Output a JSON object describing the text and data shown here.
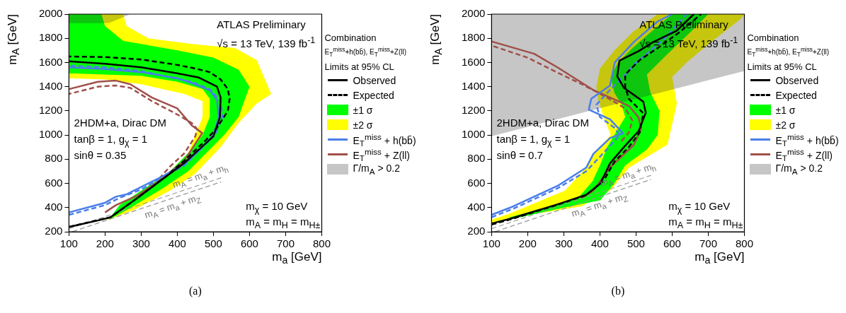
{
  "chart_data": [
    {
      "type": "line",
      "xlabel": "m$_{a}$ [GeV]",
      "ylabel": "m$_{A}$ [GeV]",
      "xlim": [
        100,
        800
      ],
      "ylim": [
        200,
        2000
      ],
      "xticks": [
        100,
        200,
        300,
        400,
        500,
        600,
        700,
        800
      ],
      "yticks": [
        200,
        400,
        600,
        800,
        1000,
        1200,
        1400,
        1600,
        1800,
        2000
      ],
      "grid": false,
      "legend": "right",
      "legend_title": "Combination\nE$_{T}$$^{miss}$+h(bb̄), E$_{T}$$^{miss}$+Z(ll)\nLimits at 95% CL",
      "annotations": [
        "ATLAS Preliminary",
        "√s = 13 TeV, 139 fb$^{-1}$",
        "2HDM+a, Dirac DM",
        "tanβ = 1, g$_{χ}$ = 1",
        "sinθ = 0.35",
        "m$_{χ}$ = 10 GeV",
        "m$_{A}$ = m$_{H}$ = m$_{H±}$",
        "(a)",
        {
          "text": "m$_{A}$ = m$_{a}$ + m$_{h}$",
          "x": 470,
          "y": 595
        },
        {
          "text": "m$_{A}$ = m$_{a}$ + m$_{Z}$",
          "x": 380,
          "y": 471
        }
      ],
      "series": [
        {
          "name": "Observed",
          "type": "line",
          "color": "#000000",
          "line_style": "solid",
          "x": [
            100,
            190,
            215,
            290,
            366,
            420,
            460,
            500,
            518,
            520,
            510,
            460,
            400,
            300,
            200,
            100
          ],
          "values": [
            240,
            300,
            320,
            480,
            650,
            770,
            880,
            990,
            1145,
            1310,
            1400,
            1475,
            1510,
            1560,
            1590,
            1610
          ]
        },
        {
          "name": "Expected",
          "type": "line",
          "color": "#000000",
          "line_style": "dashed",
          "x": [
            100,
            215,
            290,
            370,
            420,
            480,
            510,
            540,
            545,
            540,
            520,
            490,
            450,
            400,
            300,
            200,
            100
          ],
          "values": [
            240,
            320,
            480,
            660,
            790,
            960,
            1060,
            1200,
            1300,
            1380,
            1460,
            1520,
            1550,
            1580,
            1625,
            1645,
            1650
          ]
        },
        {
          "name": "±1 σ",
          "type": "area",
          "color": "#00ff00",
          "x": [
            210,
            260,
            360,
            430,
            480,
            530,
            570,
            583,
            600,
            570,
            500,
            400,
            250,
            200,
            190,
            100,
            100,
            200,
            300,
            400,
            470,
            490,
            490,
            470,
            440,
            380,
            300,
            240
          ],
          "values": [
            300,
            380,
            560,
            700,
            850,
            1000,
            1150,
            1260,
            1400,
            1540,
            1640,
            1700,
            1780,
            1900,
            2000,
            2000,
            1510,
            1500,
            1490,
            1440,
            1380,
            1300,
            1150,
            1000,
            880,
            700,
            540,
            420
          ]
        },
        {
          "name": "±2 σ",
          "type": "area",
          "color": "#ffff00",
          "x": [
            200,
            280,
            380,
            450,
            520,
            570,
            620,
            660,
            620,
            560,
            450,
            320,
            260,
            250,
            100,
            100,
            200,
            300,
            420,
            470,
            470,
            450,
            430,
            380,
            300,
            220
          ],
          "values": [
            290,
            380,
            540,
            680,
            900,
            1100,
            1260,
            1340,
            1620,
            1720,
            1750,
            1800,
            1900,
            2000,
            2000,
            1470,
            1460,
            1420,
            1340,
            1280,
            1150,
            1000,
            850,
            700,
            520,
            340
          ]
        },
        {
          "name": "E$_{T}$$^{miss}$ + h(bb̄)",
          "type": "line",
          "color": "#4a7ee8",
          "line_style": "solid",
          "x": [
            100,
            200,
            230,
            260,
            300,
            360,
            420,
            460,
            500,
            515,
            510,
            490,
            450,
            400,
            300,
            200,
            100
          ],
          "values": [
            360,
            440,
            490,
            510,
            570,
            660,
            760,
            870,
            1000,
            1150,
            1290,
            1370,
            1420,
            1470,
            1520,
            1545,
            1560
          ]
        },
        {
          "name": "E$_{T}$$^{miss}$ + Z(ll)",
          "type": "line",
          "color": "#a0504a",
          "line_style": "solid",
          "x": [
            200,
            230,
            290,
            350,
            420,
            469,
            440,
            400,
            330,
            270,
            230,
            180,
            100
          ],
          "values": [
            360,
            420,
            500,
            620,
            790,
            1016,
            1080,
            1220,
            1310,
            1420,
            1450,
            1440,
            1380
          ]
        },
        {
          "name": "Γ/m$_{A}$ > 0.2",
          "type": "area",
          "line_style": "dotted",
          "color": "#333333",
          "x": [
            100,
            210,
            270,
            100
          ],
          "values": [
            1925,
            1925,
            2000,
            2000
          ]
        },
        {
          "type": "line",
          "color": "#4a7ee8",
          "line_style": "dashed",
          "x": [
            100,
            200,
            240,
            300,
            360,
            420,
            470,
            505,
            525,
            520,
            490,
            440,
            300,
            200,
            100
          ],
          "values": [
            340,
            420,
            480,
            550,
            650,
            750,
            900,
            1000,
            1150,
            1280,
            1380,
            1440,
            1530,
            1560,
            1575
          ]
        },
        {
          "type": "line",
          "color": "#a0504a",
          "line_style": "dashed",
          "x": [
            350,
            380,
            420,
            450,
            455,
            440,
            400,
            330,
            270,
            230,
            180,
            100
          ],
          "values": [
            640,
            740,
            850,
            990,
            1050,
            1100,
            1170,
            1280,
            1390,
            1410,
            1400,
            1340
          ]
        },
        {
          "type": "line",
          "color": "#999999",
          "line_style": "dashed",
          "x": [
            100,
            520
          ],
          "values": [
            225,
            645
          ]
        },
        {
          "type": "line",
          "color": "#999999",
          "line_style": "dashed",
          "x": [
            110,
            520
          ],
          "values": [
            201,
            611
          ]
        }
      ]
    },
    {
      "type": "line",
      "xlabel": "m$_{a}$ [GeV]",
      "ylabel": "m$_{A}$ [GeV]",
      "xlim": [
        100,
        800
      ],
      "ylim": [
        200,
        2000
      ],
      "xticks": [
        100,
        200,
        300,
        400,
        500,
        600,
        700,
        800
      ],
      "yticks": [
        200,
        400,
        600,
        800,
        1000,
        1200,
        1400,
        1600,
        1800,
        2000
      ],
      "grid": false,
      "legend": "right",
      "legend_title": "Combination\nE$_{T}$$^{miss}$+h(bb̄), E$_{T}$$^{miss}$+Z(ll)\nLimits at 95% CL",
      "annotations": [
        "ATLAS Preliminary",
        "√s = 13 TeV, 139 fb$^{-1}$",
        "2HDM+a, Dirac DM",
        "tanβ = 1, g$_{χ}$ = 1",
        "sinθ = 0.7",
        "m$_{χ}$ = 10 GeV",
        "m$_{A}$ = m$_{H}$ = m$_{H±}$",
        "(b)",
        {
          "text": "m$_{A}$ = m$_{a}$ + m$_{h}$",
          "x": 484,
          "y": 609
        },
        {
          "text": "m$_{A}$ = m$_{a}$ + m$_{Z}$",
          "x": 392,
          "y": 483
        }
      ],
      "series": [
        {
          "name": "Observed",
          "type": "line",
          "color": "#000000",
          "line_style": "solid",
          "x": [
            100,
            152,
            283,
            362,
            401,
            428,
            467,
            507,
            527,
            520,
            467,
            448,
            454,
            507,
            547,
            613,
            660
          ],
          "values": [
            268,
            308,
            427,
            506,
            597,
            766,
            902,
            1032,
            1185,
            1276,
            1389,
            1485,
            1615,
            1694,
            1768,
            1864,
            2000
          ]
        },
        {
          "name": "Expected",
          "type": "line",
          "color": "#000000",
          "line_style": "dashed",
          "x": [
            100,
            150,
            280,
            360,
            410,
            440,
            480,
            510,
            520,
            480,
            470,
            470,
            510,
            560,
            620,
            680
          ],
          "values": [
            260,
            300,
            420,
            500,
            620,
            780,
            900,
            1020,
            1180,
            1300,
            1400,
            1500,
            1620,
            1720,
            1850,
            2000
          ]
        },
        {
          "name": "±1 σ",
          "type": "area",
          "color": "#00ff00",
          "x": [
            150,
            300,
            401,
            440,
            470,
            530,
            560,
            565,
            540,
            530,
            580,
            650,
            700,
            600,
            540,
            490,
            450,
            430,
            440,
            460,
            470,
            450,
            420,
            400,
            380,
            340,
            250,
            150
          ],
          "values": [
            300,
            400,
            460,
            600,
            750,
            880,
            1000,
            1200,
            1350,
            1500,
            1650,
            1850,
            2000,
            2000,
            1850,
            1720,
            1600,
            1480,
            1350,
            1250,
            1150,
            1050,
            900,
            750,
            620,
            480,
            400,
            320
          ]
        },
        {
          "name": "±2 σ",
          "type": "area",
          "color": "#ffff00",
          "x": [
            100,
            185,
            349,
            428,
            481,
            587,
            613,
            600,
            640,
            700,
            790,
            800,
            560,
            490,
            440,
            400,
            390,
            395,
            410,
            430,
            390,
            362,
            303,
            150,
            100
          ],
          "values": [
            260,
            330,
            410,
            540,
            730,
            920,
            1260,
            1480,
            1600,
            1750,
            1960,
            2000,
            2000,
            1850,
            1700,
            1550,
            1400,
            1300,
            1150,
            1000,
            870,
            730,
            540,
            350,
            300
          ]
        },
        {
          "name": "E$_{T}$$^{miss}$ + h(bb̄)",
          "type": "line",
          "color": "#4a7ee8",
          "line_style": "solid",
          "x": [
            100,
            152,
            283,
            362,
            382,
            428,
            464,
            428,
            369,
            376,
            428,
            441,
            494,
            560,
            600
          ],
          "values": [
            340,
            400,
            580,
            730,
            845,
            975,
            1015,
            1130,
            1210,
            1300,
            1410,
            1600,
            1770,
            1940,
            2000
          ]
        },
        {
          "name": "E$_{T}$$^{miss}$ + Z(ll)",
          "type": "line",
          "color": "#a0504a",
          "line_style": "solid",
          "x": [
            349,
            382,
            428,
            494,
            514,
            507,
            481,
            382,
            283,
            218,
            100
          ],
          "values": [
            480,
            540,
            732,
            919,
            1050,
            1146,
            1240,
            1372,
            1559,
            1672,
            1774
          ]
        },
        {
          "name": "Γ/m$_{A}$ > 0.2",
          "type": "area",
          "line_style": "dotted",
          "color": "#333333",
          "x": [
            100,
            800,
            800,
            100
          ],
          "values": [
            990,
            1530,
            2000,
            2000
          ]
        },
        {
          "type": "line",
          "color": "#4a7ee8",
          "line_style": "dashed",
          "x": [
            100,
            160,
            283,
            362,
            400,
            440,
            455,
            440,
            400,
            390,
            430,
            470,
            500,
            540,
            580,
            640
          ],
          "values": [
            320,
            390,
            560,
            700,
            820,
            950,
            1000,
            1060,
            1150,
            1250,
            1380,
            1500,
            1600,
            1700,
            1800,
            2000
          ]
        },
        {
          "type": "line",
          "color": "#a0504a",
          "line_style": "dashed",
          "x": [
            460,
            480,
            490,
            470,
            420,
            350,
            280,
            200,
            100
          ],
          "values": [
            950,
            1020,
            1120,
            1220,
            1310,
            1420,
            1520,
            1640,
            1740
          ]
        },
        {
          "type": "line",
          "color": "#999999",
          "line_style": "dashed",
          "x": [
            100,
            540
          ],
          "values": [
            225,
            665
          ]
        },
        {
          "type": "line",
          "color": "#999999",
          "line_style": "dashed",
          "x": [
            110,
            540
          ],
          "values": [
            201,
            631
          ]
        }
      ]
    }
  ]
}
